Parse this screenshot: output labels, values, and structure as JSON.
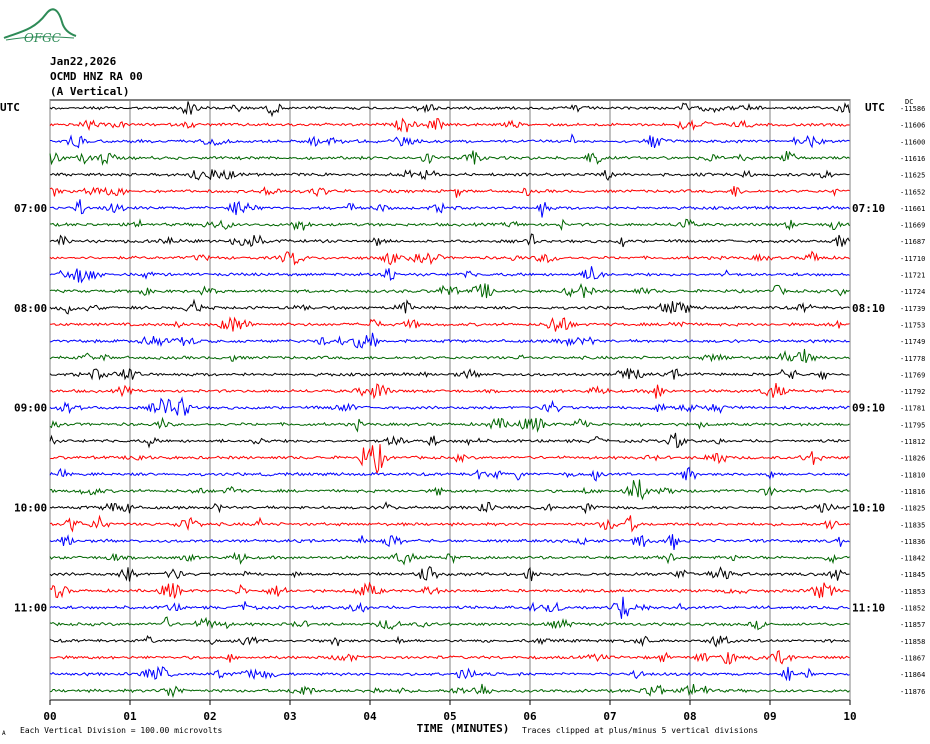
{
  "header": {
    "logo_text": "OFGC",
    "date": "Jan22,2026",
    "station": "OCMD HNZ RA 00",
    "component": "(A Vertical)"
  },
  "labels": {
    "utc_left": "UTC",
    "utc_right": "UTC",
    "dc": "DC",
    "x_title": "TIME (MINUTES)",
    "footer_left": "Each Vertical Division =  100.00 microvolts",
    "footer_right": "Traces clipped at plus/minus 5 vertical divisions",
    "footer_mark": "A"
  },
  "colors": {
    "trace_cycle": [
      "#000000",
      "#ff0000",
      "#0000ff",
      "#006600"
    ],
    "grid": "#808080",
    "logo": "#2e8b57"
  },
  "chart_data": {
    "type": "line",
    "title": "",
    "xlabel": "TIME (MINUTES)",
    "xlim": [
      0,
      10
    ],
    "x_ticks": [
      "00",
      "01",
      "02",
      "03",
      "04",
      "05",
      "06",
      "07",
      "08",
      "09",
      "10"
    ],
    "left_time_labels": [
      {
        "trace": 6,
        "text": "07:00"
      },
      {
        "trace": 12,
        "text": "08:00"
      },
      {
        "trace": 18,
        "text": "09:00"
      },
      {
        "trace": 24,
        "text": "10:00"
      },
      {
        "trace": 30,
        "text": "11:00"
      }
    ],
    "right_time_labels": [
      {
        "trace": 6,
        "text": "07:10"
      },
      {
        "trace": 12,
        "text": "08:10"
      },
      {
        "trace": 18,
        "text": "09:10"
      },
      {
        "trace": 24,
        "text": "10:10"
      },
      {
        "trace": 30,
        "text": "11:10"
      }
    ],
    "dc_offsets": [
      "-11586",
      "-11606",
      "-11600",
      "-11616",
      "-11625",
      "-11652",
      "-11661",
      "-11669",
      "-11687",
      "-11710",
      "-11721",
      "-11724",
      "-11739",
      "-11753",
      "-11749",
      "-11778",
      "-11769",
      "-11792",
      "-11781",
      "-11795",
      "-11812",
      "-11826",
      "-11810",
      "-11816",
      "-11825",
      "-11835",
      "-11836",
      "-11842",
      "-11845",
      "-11853",
      "-11852",
      "-11857",
      "-11858",
      "-11867",
      "-11864",
      "-11876"
    ],
    "grid": true
  }
}
